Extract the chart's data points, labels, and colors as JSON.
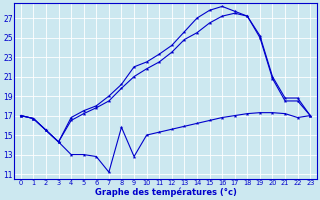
{
  "xlabel": "Graphe des températures (°c)",
  "xlim": [
    -0.5,
    23.5
  ],
  "ylim": [
    10.5,
    28.5
  ],
  "yticks": [
    11,
    13,
    15,
    17,
    19,
    21,
    23,
    25,
    27
  ],
  "xticks": [
    0,
    1,
    2,
    3,
    4,
    5,
    6,
    7,
    8,
    9,
    10,
    11,
    12,
    13,
    14,
    15,
    16,
    17,
    18,
    19,
    20,
    21,
    22,
    23
  ],
  "bg_color": "#cce8f0",
  "line_color": "#0000cc",
  "grid_color": "#ffffff",
  "series1_x": [
    0,
    1,
    2,
    3,
    4,
    5,
    6,
    7,
    8,
    9,
    10,
    11,
    12,
    13,
    14,
    15,
    16,
    17,
    18,
    19,
    20,
    21,
    22,
    23
  ],
  "series1_y": [
    17.0,
    16.7,
    15.5,
    14.3,
    13.0,
    13.0,
    12.8,
    11.2,
    15.8,
    12.8,
    15.0,
    15.3,
    15.6,
    15.9,
    16.2,
    16.5,
    16.8,
    17.0,
    17.2,
    17.3,
    17.3,
    17.2,
    16.8,
    17.0
  ],
  "series2_x": [
    0,
    1,
    2,
    3,
    4,
    5,
    6,
    7,
    8,
    9,
    10,
    11,
    12,
    13,
    14,
    15,
    16,
    17,
    18,
    19,
    20,
    21,
    22,
    23
  ],
  "series2_y": [
    17.0,
    16.7,
    15.5,
    14.3,
    16.5,
    17.2,
    17.8,
    18.5,
    19.8,
    21.0,
    21.8,
    22.5,
    23.5,
    24.8,
    25.5,
    26.5,
    27.2,
    27.5,
    27.2,
    25.0,
    20.8,
    18.5,
    18.5,
    17.0
  ],
  "series3_x": [
    0,
    1,
    2,
    3,
    4,
    5,
    6,
    7,
    8,
    9,
    10,
    11,
    12,
    13,
    14,
    15,
    16,
    17,
    18,
    19,
    20,
    21,
    22,
    23
  ],
  "series3_y": [
    17.0,
    16.7,
    15.5,
    14.3,
    16.8,
    17.5,
    18.0,
    19.0,
    20.2,
    22.0,
    22.5,
    23.3,
    24.2,
    25.6,
    27.0,
    27.8,
    28.2,
    27.7,
    27.2,
    25.2,
    21.0,
    18.8,
    18.8,
    17.0
  ]
}
